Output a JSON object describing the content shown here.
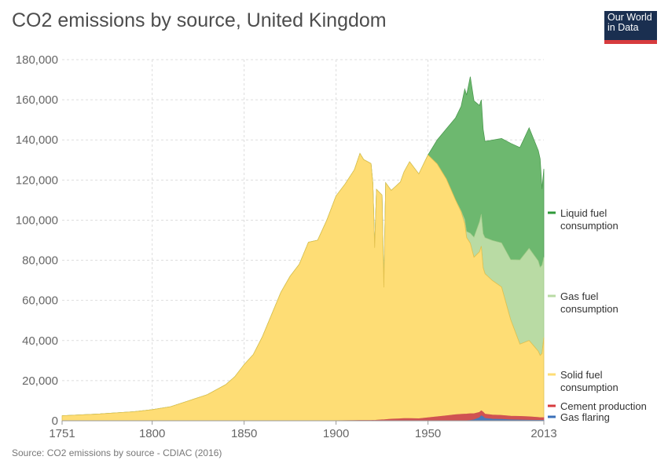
{
  "title": "CO2 emissions by source, United Kingdom",
  "logo": {
    "lines": [
      "Our World",
      "in Data"
    ],
    "bg": "#1a2f50",
    "accent": "#d73b3e"
  },
  "source": "Source: CO2 emissions by source - CDIAC (2016)",
  "colors": {
    "solid": "#fedd75",
    "solid_line": "#e2c14e",
    "gas": "#b9dba4",
    "gas_line": "#9fcb87",
    "liquid": "#6db86f",
    "liquid_line": "#4b9a4f",
    "cement": "#d05252",
    "flaring": "#4a78b8",
    "legend_solid": "#fedd75",
    "legend_gas": "#b9dba4",
    "legend_liquid": "#2f9a3a",
    "legend_cement": "#d73b3e",
    "legend_flaring": "#3a6fb8"
  },
  "chart_data": {
    "type": "area",
    "stacked": true,
    "title": "CO2 emissions by source, United Kingdom",
    "xlabel": "",
    "ylabel": "",
    "xlim": [
      1751,
      2013
    ],
    "ylim": [
      0,
      180000
    ],
    "x_ticks": [
      "1751",
      "1800",
      "1850",
      "1900",
      "1950",
      "2013"
    ],
    "x_tick_values": [
      1751,
      1800,
      1850,
      1900,
      1950,
      2013
    ],
    "y_ticks": [
      "0",
      "20,000",
      "40,000",
      "60,000",
      "80,000",
      "100,000",
      "120,000",
      "140,000",
      "160,000",
      "180,000"
    ],
    "y_tick_values": [
      0,
      20000,
      40000,
      60000,
      80000,
      100000,
      120000,
      140000,
      160000,
      180000
    ],
    "grid": true,
    "legend_position": "right",
    "x": [
      1751,
      1760,
      1770,
      1780,
      1790,
      1800,
      1810,
      1820,
      1830,
      1840,
      1845,
      1850,
      1855,
      1860,
      1865,
      1870,
      1875,
      1880,
      1885,
      1890,
      1895,
      1900,
      1905,
      1910,
      1913,
      1915,
      1919,
      1920,
      1921,
      1922,
      1925,
      1926,
      1927,
      1930,
      1935,
      1937,
      1940,
      1945,
      1950,
      1955,
      1960,
      1965,
      1968,
      1970,
      1971,
      1973,
      1975,
      1978,
      1979,
      1980,
      1981,
      1985,
      1990,
      1995,
      2000,
      2005,
      2010,
      2011,
      2012,
      2013
    ],
    "series": [
      {
        "name": "Gas flaring",
        "values": [
          0,
          0,
          0,
          0,
          0,
          0,
          0,
          0,
          0,
          0,
          0,
          0,
          0,
          0,
          0,
          0,
          0,
          0,
          0,
          0,
          0,
          0,
          0,
          0,
          0,
          0,
          0,
          0,
          0,
          0,
          0,
          0,
          0,
          0,
          0,
          0,
          0,
          0,
          0,
          0,
          0,
          0,
          0,
          0,
          50,
          200,
          500,
          1500,
          2500,
          2000,
          1200,
          800,
          700,
          500,
          400,
          300,
          250,
          250,
          250,
          250
        ]
      },
      {
        "name": "Cement production",
        "values": [
          0,
          0,
          0,
          0,
          0,
          0,
          0,
          0,
          0,
          0,
          0,
          0,
          0,
          0,
          0,
          0,
          0,
          0,
          0,
          0,
          0,
          50,
          100,
          150,
          200,
          200,
          200,
          250,
          200,
          300,
          500,
          500,
          600,
          800,
          1000,
          1100,
          1100,
          1000,
          1500,
          2000,
          2500,
          3000,
          3200,
          3300,
          3300,
          3300,
          3000,
          2700,
          2500,
          2300,
          2100,
          2100,
          2000,
          1800,
          1800,
          1700,
          1400,
          1300,
          1300,
          1300
        ]
      },
      {
        "name": "Solid fuel consumption",
        "values": [
          2500,
          2900,
          3300,
          3900,
          4500,
          5500,
          7000,
          10000,
          13000,
          18000,
          22000,
          28000,
          33000,
          42000,
          53000,
          64000,
          72000,
          78000,
          89000,
          90000,
          100000,
          112000,
          118000,
          125000,
          133000,
          130000,
          128000,
          118000,
          86000,
          115000,
          112000,
          66000,
          118000,
          114000,
          118000,
          123000,
          128000,
          122000,
          131000,
          126000,
          118000,
          107000,
          101000,
          95000,
          88000,
          85000,
          78000,
          80000,
          82000,
          72000,
          70000,
          67000,
          64000,
          48000,
          36000,
          38000,
          33000,
          31000,
          32000,
          40000
        ]
      },
      {
        "name": "Gas fuel consumption",
        "values": [
          0,
          0,
          0,
          0,
          0,
          0,
          0,
          0,
          0,
          0,
          0,
          0,
          0,
          0,
          0,
          0,
          0,
          0,
          0,
          0,
          0,
          0,
          0,
          0,
          0,
          0,
          0,
          0,
          0,
          0,
          0,
          0,
          0,
          0,
          0,
          0,
          0,
          0,
          0,
          0,
          0,
          0,
          500,
          2000,
          3000,
          5000,
          10000,
          15000,
          16000,
          17000,
          18000,
          20000,
          22000,
          30000,
          42000,
          46000,
          45000,
          44000,
          44000,
          40000
        ]
      },
      {
        "name": "Liquid fuel consumption",
        "values": [
          0,
          0,
          0,
          0,
          0,
          0,
          0,
          0,
          0,
          0,
          0,
          0,
          0,
          0,
          0,
          0,
          0,
          0,
          0,
          0,
          0,
          0,
          0,
          0,
          0,
          0,
          0,
          0,
          0,
          0,
          0,
          0,
          0,
          0,
          0,
          0,
          0,
          0,
          0,
          12000,
          25000,
          41000,
          52000,
          65000,
          68000,
          78000,
          68000,
          58000,
          57000,
          52000,
          48000,
          50000,
          52000,
          58000,
          56000,
          60000,
          55000,
          54000,
          38000,
          44000
        ]
      }
    ]
  },
  "legend": [
    {
      "lines": [
        "Liquid fuel",
        "consumption"
      ],
      "color_key": "legend_liquid"
    },
    {
      "lines": [
        "Gas fuel",
        "consumption"
      ],
      "color_key": "legend_gas"
    },
    {
      "lines": [
        "Solid fuel",
        "consumption"
      ],
      "color_key": "legend_solid"
    },
    {
      "lines": [
        "Cement production"
      ],
      "color_key": "legend_cement"
    },
    {
      "lines": [
        "Gas flaring"
      ],
      "color_key": "legend_flaring"
    }
  ]
}
